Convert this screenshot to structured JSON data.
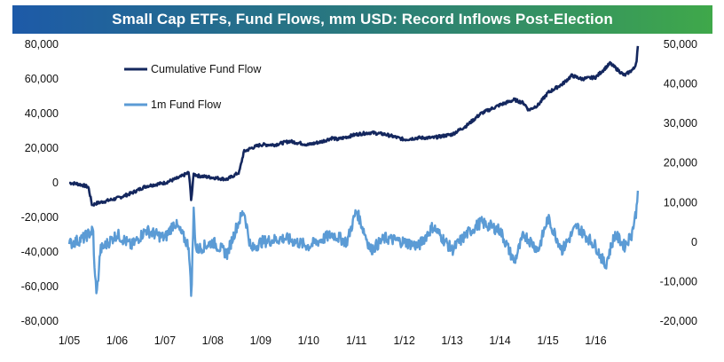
{
  "chart_data": {
    "type": "line",
    "title": "Small Cap ETFs, Fund Flows, mm USD: Record Inflows Post-Election",
    "x_tick_labels": [
      "1/05",
      "1/06",
      "1/07",
      "1/08",
      "1/09",
      "1/10",
      "1/11",
      "1/12",
      "1/13",
      "1/14",
      "1/15",
      "1/16"
    ],
    "y_left": {
      "ticks": [
        80000,
        60000,
        40000,
        20000,
        0,
        -20000,
        -40000,
        -60000,
        -80000
      ],
      "tick_labels": [
        "80,000",
        "60,000",
        "40,000",
        "20,000",
        "0",
        "-20,000",
        "-40,000",
        "-60,000",
        "-80,000"
      ],
      "range": [
        -80000,
        80000
      ]
    },
    "y_right": {
      "ticks": [
        50000,
        40000,
        30000,
        20000,
        10000,
        0,
        -10000,
        -20000
      ],
      "tick_labels": [
        "50,000",
        "40,000",
        "30,000",
        "20,000",
        "10,000",
        "0",
        "-10,000",
        "-20,000"
      ],
      "range": [
        -20000,
        50000
      ]
    },
    "legend": [
      {
        "label": "Cumulative Fund Flow",
        "color": "#14275e"
      },
      {
        "label": "1m Fund Flow",
        "color": "#5b9bd5"
      }
    ],
    "legend_position": "top-left",
    "grid": false,
    "series": [
      {
        "name": "Cumulative Fund Flow",
        "axis": "left",
        "color": "#14275e",
        "x": [
          2005.0,
          2005.15,
          2005.3,
          2005.4,
          2005.48,
          2005.55,
          2005.7,
          2006.0,
          2006.3,
          2006.6,
          2007.0,
          2007.3,
          2007.5,
          2007.55,
          2007.6,
          2007.7,
          2008.0,
          2008.3,
          2008.55,
          2008.65,
          2008.8,
          2009.0,
          2009.3,
          2009.6,
          2010.0,
          2010.3,
          2010.5,
          2010.6,
          2011.0,
          2011.3,
          2011.6,
          2012.0,
          2012.3,
          2012.6,
          2013.0,
          2013.3,
          2013.6,
          2014.0,
          2014.3,
          2014.5,
          2014.6,
          2014.8,
          2015.0,
          2015.3,
          2015.5,
          2015.7,
          2016.0,
          2016.3,
          2016.6,
          2016.8,
          2016.85,
          2016.88
        ],
        "values": [
          0,
          -500,
          -1500,
          -2500,
          -13000,
          -12000,
          -11000,
          -9000,
          -6000,
          -2000,
          0,
          3000,
          6000,
          -10000,
          5000,
          4000,
          3000,
          2000,
          6000,
          18000,
          20000,
          22000,
          22000,
          24000,
          22000,
          24000,
          26000,
          25000,
          28000,
          29000,
          28000,
          25000,
          26000,
          26000,
          28000,
          33000,
          40000,
          45000,
          48000,
          46000,
          42000,
          45000,
          52000,
          57000,
          62000,
          60000,
          61000,
          69000,
          62000,
          66000,
          70000,
          79000
        ]
      },
      {
        "name": "1m Fund Flow",
        "axis": "right",
        "color": "#5b9bd5",
        "x": [
          2005.0,
          2005.3,
          2005.5,
          2005.53,
          2005.58,
          2005.65,
          2006.0,
          2006.3,
          2006.6,
          2007.0,
          2007.2,
          2007.5,
          2007.55,
          2007.6,
          2007.65,
          2008.0,
          2008.3,
          2008.5,
          2008.65,
          2008.8,
          2009.0,
          2009.5,
          2010.0,
          2010.5,
          2010.8,
          2011.0,
          2011.3,
          2011.6,
          2012.0,
          2012.3,
          2012.6,
          2013.0,
          2013.3,
          2013.6,
          2014.0,
          2014.3,
          2014.5,
          2014.8,
          2015.0,
          2015.3,
          2015.6,
          2016.0,
          2016.2,
          2016.4,
          2016.6,
          2016.75,
          2016.85,
          2016.88
        ],
        "values": [
          -500,
          1000,
          3000,
          -8000,
          -13000,
          -2000,
          2000,
          -1000,
          3000,
          1000,
          5000,
          -1000,
          -14000,
          8000,
          -2000,
          0,
          -3000,
          4000,
          8000,
          -2000,
          0,
          1000,
          -1000,
          2000,
          0,
          8000,
          -2000,
          1000,
          0,
          -1000,
          4000,
          -2000,
          2000,
          5000,
          3000,
          -5000,
          2000,
          -2000,
          6000,
          -2000,
          4000,
          -1000,
          -6000,
          2000,
          -1000,
          2000,
          8000,
          13000
        ]
      }
    ]
  }
}
